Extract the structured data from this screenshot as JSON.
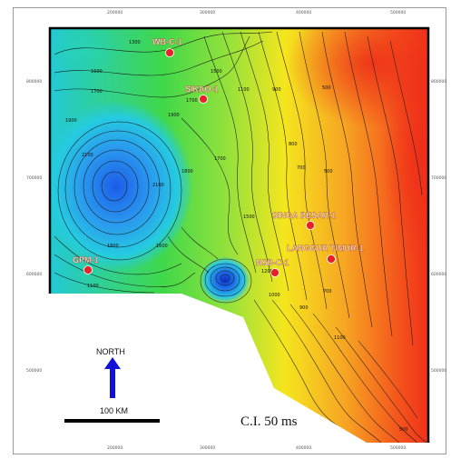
{
  "map": {
    "contour_interval": "C.I. 50 ms",
    "north_label": "NORTH",
    "scale_label": "100 KM",
    "x_ticks_top": [
      "200000",
      "300000",
      "400000",
      "500000"
    ],
    "x_ticks_bottom": [
      "200000",
      "300000",
      "400000",
      "500000"
    ],
    "y_ticks_left": [
      "800000",
      "700000",
      "600000",
      "500000"
    ],
    "y_ticks_right": [
      "800000",
      "700000",
      "600000",
      "500000"
    ],
    "wells": [
      {
        "name": "WB-C-1"
      },
      {
        "name": "SIKAO-1"
      },
      {
        "name": "SINGA BESAR-1"
      },
      {
        "name": "LANGGUR TIMUR-1"
      },
      {
        "name": "NSB-C-1"
      },
      {
        "name": "GPM-1"
      }
    ],
    "contour_labels": [
      "1300",
      "1600",
      "1700",
      "1900",
      "2100",
      "2100",
      "1900",
      "1700",
      "1500",
      "1100",
      "900",
      "800",
      "700",
      "500",
      "500",
      "1500",
      "1800",
      "1100",
      "1200",
      "1000",
      "900",
      "700",
      "500",
      "1100",
      "1800",
      "1700",
      "1600"
    ],
    "colors": {
      "deep": "#1a5fe6",
      "mid": "#1fd3a8",
      "green": "#33d633",
      "yellow": "#f2e21a",
      "orange": "#f7931e",
      "shallow": "#f2361a",
      "well_marker": "#e8202a",
      "north_arrow": "#1010d8",
      "scale_bar": "#000000"
    }
  }
}
